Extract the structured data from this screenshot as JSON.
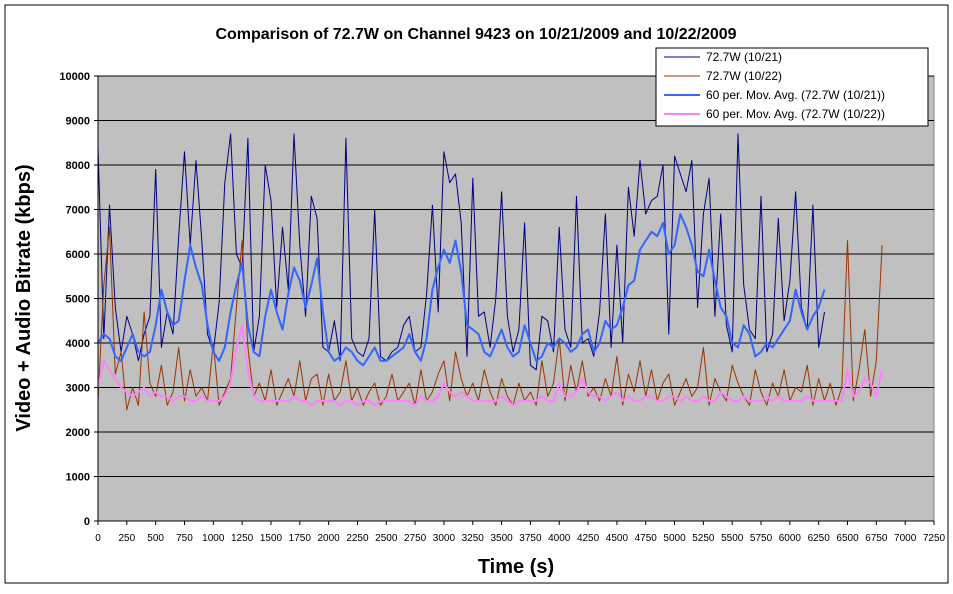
{
  "chart_data": {
    "type": "line",
    "title": "Comparison of 72.7W on Channel 9423 on 10/21/2009 and 10/22/2009",
    "xlabel": "Time (s)",
    "ylabel": "Video + Audio Bitrate (kbps)",
    "xlim": [
      0,
      7250
    ],
    "ylim": [
      0,
      10000
    ],
    "xticks": [
      0,
      250,
      500,
      750,
      1000,
      1250,
      1500,
      1750,
      2000,
      2250,
      2500,
      2750,
      3000,
      3250,
      3500,
      3750,
      4000,
      4250,
      4500,
      4750,
      5000,
      5250,
      5500,
      5750,
      6000,
      6250,
      6500,
      6750,
      7000,
      7250
    ],
    "yticks": [
      0,
      1000,
      2000,
      3000,
      4000,
      5000,
      6000,
      7000,
      8000,
      9000,
      10000
    ],
    "grid": "horizontal",
    "legend_position": "top-right",
    "plot_background": "#c0c0c0",
    "series": [
      {
        "name": "72.7W (10/21)",
        "color": "#000080",
        "x": [
          0,
          50,
          100,
          150,
          200,
          250,
          300,
          350,
          400,
          450,
          500,
          550,
          600,
          650,
          700,
          750,
          800,
          850,
          900,
          950,
          1000,
          1050,
          1100,
          1150,
          1200,
          1250,
          1300,
          1350,
          1400,
          1450,
          1500,
          1550,
          1600,
          1650,
          1700,
          1750,
          1800,
          1850,
          1900,
          1950,
          2000,
          2050,
          2100,
          2150,
          2200,
          2250,
          2300,
          2350,
          2400,
          2450,
          2500,
          2550,
          2600,
          2650,
          2700,
          2750,
          2800,
          2850,
          2900,
          2950,
          3000,
          3050,
          3100,
          3150,
          3200,
          3250,
          3300,
          3350,
          3400,
          3450,
          3500,
          3550,
          3600,
          3650,
          3700,
          3750,
          3800,
          3850,
          3900,
          3950,
          4000,
          4050,
          4100,
          4150,
          4200,
          4250,
          4300,
          4350,
          4400,
          4450,
          4500,
          4550,
          4600,
          4650,
          4700,
          4750,
          4800,
          4850,
          4900,
          4950,
          5000,
          5050,
          5100,
          5150,
          5200,
          5250,
          5300,
          5350,
          5400,
          5450,
          5500,
          5550,
          5600,
          5650,
          5700,
          5750,
          5800,
          5850,
          5900,
          5950,
          6000,
          6050,
          6100,
          6150,
          6200,
          6250,
          6300
        ],
        "y": [
          8400,
          4100,
          7100,
          4800,
          3800,
          4600,
          4200,
          3600,
          4200,
          4600,
          7900,
          3900,
          4700,
          4200,
          6400,
          8300,
          6200,
          8100,
          6300,
          4200,
          3800,
          4900,
          7600,
          8700,
          6000,
          5700,
          8600,
          3800,
          4600,
          8000,
          7200,
          4800,
          6600,
          5200,
          8700,
          6200,
          4600,
          7300,
          6800,
          3900,
          3800,
          4500,
          3600,
          8600,
          4100,
          3800,
          3700,
          4100,
          7000,
          3700,
          3600,
          3800,
          3900,
          4400,
          4600,
          3800,
          3900,
          5100,
          7100,
          4700,
          8300,
          7600,
          7800,
          6700,
          3700,
          7700,
          4600,
          4700,
          3900,
          5000,
          7400,
          4600,
          3800,
          4300,
          6700,
          3500,
          3400,
          4600,
          4500,
          3800,
          6600,
          4300,
          3900,
          7300,
          4000,
          4100,
          3700,
          4700,
          6900,
          3900,
          6200,
          4000,
          7500,
          6400,
          8100,
          6900,
          7200,
          7300,
          8000,
          4200,
          8200,
          7800,
          7400,
          8100,
          4800,
          6900,
          7700,
          4600,
          6900,
          4400,
          3800,
          8700,
          5300,
          4300,
          4100,
          7300,
          3800,
          4200,
          6800,
          4500,
          5400,
          7400,
          4800,
          4300,
          7100,
          3900,
          4700
        ]
      },
      {
        "name": "72.7W (10/22)",
        "color": "#993300",
        "x": [
          0,
          50,
          100,
          150,
          200,
          250,
          300,
          350,
          400,
          450,
          500,
          550,
          600,
          650,
          700,
          750,
          800,
          850,
          900,
          950,
          1000,
          1050,
          1100,
          1150,
          1200,
          1250,
          1300,
          1350,
          1400,
          1450,
          1500,
          1550,
          1600,
          1650,
          1700,
          1750,
          1800,
          1850,
          1900,
          1950,
          2000,
          2050,
          2100,
          2150,
          2200,
          2250,
          2300,
          2350,
          2400,
          2450,
          2500,
          2550,
          2600,
          2650,
          2700,
          2750,
          2800,
          2850,
          2900,
          2950,
          3000,
          3050,
          3100,
          3150,
          3200,
          3250,
          3300,
          3350,
          3400,
          3450,
          3500,
          3550,
          3600,
          3650,
          3700,
          3750,
          3800,
          3850,
          3900,
          3950,
          4000,
          4050,
          4100,
          4150,
          4200,
          4250,
          4300,
          4350,
          4400,
          4450,
          4500,
          4550,
          4600,
          4650,
          4700,
          4750,
          4800,
          4850,
          4900,
          4950,
          5000,
          5050,
          5100,
          5150,
          5200,
          5250,
          5300,
          5350,
          5400,
          5450,
          5500,
          5550,
          5600,
          5650,
          5700,
          5750,
          5800,
          5850,
          5900,
          5950,
          6000,
          6050,
          6100,
          6150,
          6200,
          6250,
          6300,
          6350,
          6400,
          6450,
          6500,
          6550,
          6600,
          6650,
          6700,
          6750,
          6800
        ],
        "y": [
          2700,
          5300,
          6600,
          3300,
          3800,
          2500,
          3000,
          2600,
          4700,
          3100,
          2800,
          3500,
          2600,
          2900,
          3900,
          2700,
          3400,
          2800,
          3000,
          2700,
          4000,
          2600,
          2900,
          3200,
          4800,
          6300,
          3900,
          2800,
          3100,
          2700,
          3400,
          2600,
          2900,
          3200,
          2800,
          3600,
          2700,
          3200,
          3300,
          2600,
          3300,
          2700,
          2900,
          3600,
          2700,
          3000,
          2600,
          2900,
          3100,
          2600,
          2800,
          3300,
          2700,
          2900,
          3100,
          2600,
          3400,
          2700,
          2900,
          3300,
          3600,
          2700,
          3800,
          3200,
          2800,
          3100,
          2700,
          3400,
          2900,
          2600,
          3200,
          2800,
          2600,
          3100,
          2700,
          2900,
          2600,
          3600,
          2800,
          3100,
          4100,
          2700,
          3500,
          2900,
          3600,
          2800,
          3000,
          2700,
          3200,
          2800,
          3700,
          2600,
          3300,
          2900,
          3600,
          2800,
          3400,
          2700,
          3100,
          3300,
          2600,
          2900,
          3200,
          2800,
          3000,
          3900,
          2600,
          3200,
          2900,
          2700,
          3500,
          3100,
          2800,
          2600,
          3400,
          2900,
          2600,
          3100,
          2800,
          3400,
          2700,
          3000,
          2900,
          3500,
          2600,
          3200,
          2700,
          3100,
          2600,
          3000,
          6300,
          2700,
          3400,
          4300,
          2800,
          3600,
          6200
        ]
      },
      {
        "name": "60 per. Mov. Avg. (72.7W (10/21))",
        "color": "#3366ff",
        "x": [
          0,
          50,
          100,
          150,
          200,
          250,
          300,
          350,
          400,
          450,
          500,
          550,
          600,
          650,
          700,
          750,
          800,
          850,
          900,
          950,
          1000,
          1050,
          1100,
          1150,
          1200,
          1250,
          1300,
          1350,
          1400,
          1450,
          1500,
          1550,
          1600,
          1650,
          1700,
          1750,
          1800,
          1850,
          1900,
          1950,
          2000,
          2050,
          2100,
          2150,
          2200,
          2250,
          2300,
          2350,
          2400,
          2450,
          2500,
          2550,
          2600,
          2650,
          2700,
          2750,
          2800,
          2850,
          2900,
          2950,
          3000,
          3050,
          3100,
          3150,
          3200,
          3250,
          3300,
          3350,
          3400,
          3450,
          3500,
          3550,
          3600,
          3650,
          3700,
          3750,
          3800,
          3850,
          3900,
          3950,
          4000,
          4050,
          4100,
          4150,
          4200,
          4250,
          4300,
          4350,
          4400,
          4450,
          4500,
          4550,
          4600,
          4650,
          4700,
          4750,
          4800,
          4850,
          4900,
          4950,
          5000,
          5050,
          5100,
          5150,
          5200,
          5250,
          5300,
          5350,
          5400,
          5450,
          5500,
          5550,
          5600,
          5650,
          5700,
          5750,
          5800,
          5850,
          5900,
          5950,
          6000,
          6050,
          6100,
          6150,
          6200,
          6250,
          6300
        ],
        "y": [
          4000,
          4200,
          4100,
          3700,
          3600,
          3900,
          4200,
          3800,
          3700,
          3800,
          4400,
          5200,
          4700,
          4400,
          4500,
          5400,
          6200,
          5700,
          5300,
          4400,
          3800,
          3600,
          3900,
          4700,
          5300,
          5800,
          4400,
          3800,
          3700,
          4600,
          5200,
          4700,
          4300,
          5100,
          5700,
          5400,
          4800,
          5300,
          5900,
          4700,
          3800,
          3600,
          3700,
          3900,
          3800,
          3600,
          3500,
          3700,
          3900,
          3600,
          3600,
          3700,
          3800,
          3900,
          4200,
          3800,
          3600,
          4100,
          5200,
          5700,
          6100,
          5800,
          6300,
          5600,
          4400,
          4300,
          4200,
          3800,
          3700,
          4000,
          4300,
          3900,
          3700,
          3800,
          4400,
          4000,
          3600,
          3700,
          4000,
          3900,
          4100,
          4000,
          3800,
          3900,
          4200,
          4300,
          3800,
          4000,
          4500,
          4300,
          4400,
          4800,
          5300,
          5400,
          6100,
          6300,
          6500,
          6400,
          6700,
          6000,
          6200,
          6900,
          6600,
          6200,
          5600,
          5500,
          6100,
          5400,
          4800,
          4600,
          4000,
          3900,
          4400,
          4200,
          3700,
          3800,
          4000,
          3900,
          4100,
          4300,
          4500,
          5200,
          4700,
          4300,
          4600,
          4800,
          5200
        ]
      },
      {
        "name": "60 per. Mov. Avg. (72.7W (10/22))",
        "color": "#ff80ff",
        "x": [
          0,
          50,
          100,
          150,
          200,
          250,
          300,
          350,
          400,
          450,
          500,
          550,
          600,
          650,
          700,
          750,
          800,
          850,
          900,
          950,
          1000,
          1050,
          1100,
          1150,
          1200,
          1250,
          1300,
          1350,
          1400,
          1450,
          1500,
          1550,
          1600,
          1650,
          1700,
          1750,
          1800,
          1850,
          1900,
          1950,
          2000,
          2050,
          2100,
          2150,
          2200,
          2250,
          2300,
          2350,
          2400,
          2450,
          2500,
          2550,
          2600,
          2650,
          2700,
          2750,
          2800,
          2850,
          2900,
          2950,
          3000,
          3050,
          3100,
          3150,
          3200,
          3250,
          3300,
          3350,
          3400,
          3450,
          3500,
          3550,
          3600,
          3650,
          3700,
          3750,
          3800,
          3850,
          3900,
          3950,
          4000,
          4050,
          4100,
          4150,
          4200,
          4250,
          4300,
          4350,
          4400,
          4450,
          4500,
          4550,
          4600,
          4650,
          4700,
          4750,
          4800,
          4850,
          4900,
          4950,
          5000,
          5050,
          5100,
          5150,
          5200,
          5250,
          5300,
          5350,
          5400,
          5450,
          5500,
          5550,
          5600,
          5650,
          5700,
          5750,
          5800,
          5850,
          5900,
          5950,
          6000,
          6050,
          6100,
          6150,
          6200,
          6250,
          6300,
          6350,
          6400,
          6450,
          6500,
          6550,
          6600,
          6650,
          6700,
          6750,
          6800
        ],
        "y": [
          3000,
          3600,
          3400,
          3200,
          3000,
          2900,
          2800,
          2900,
          3000,
          2800,
          2900,
          2800,
          2800,
          2700,
          2800,
          2800,
          2700,
          2700,
          2800,
          2700,
          2700,
          2700,
          2800,
          3100,
          3900,
          4400,
          3400,
          2800,
          2700,
          2700,
          2700,
          2700,
          2700,
          2700,
          2800,
          2700,
          2700,
          2600,
          2700,
          2700,
          2700,
          2700,
          2600,
          2700,
          2700,
          2600,
          2700,
          2700,
          2600,
          2700,
          2700,
          2700,
          2700,
          2700,
          2700,
          2600,
          2800,
          2700,
          2700,
          2800,
          3100,
          2900,
          2800,
          2900,
          2800,
          2700,
          2700,
          2700,
          2700,
          2700,
          2800,
          2700,
          2600,
          2700,
          2700,
          2700,
          2700,
          2800,
          2700,
          2700,
          3100,
          2800,
          2800,
          2900,
          3200,
          2900,
          2800,
          2800,
          2700,
          2800,
          2900,
          2700,
          2800,
          2700,
          2700,
          2800,
          2800,
          2700,
          2700,
          2800,
          2800,
          2700,
          2800,
          2700,
          2700,
          2800,
          2700,
          2700,
          2900,
          2800,
          2700,
          2700,
          2800,
          2700,
          2700,
          2700,
          2800,
          2700,
          2800,
          2700,
          2700,
          2700,
          2700,
          2800,
          2700,
          2700,
          2700,
          2700,
          2700,
          2700,
          3400,
          2800,
          2900,
          3200,
          3100,
          2800,
          3400
        ]
      }
    ]
  }
}
